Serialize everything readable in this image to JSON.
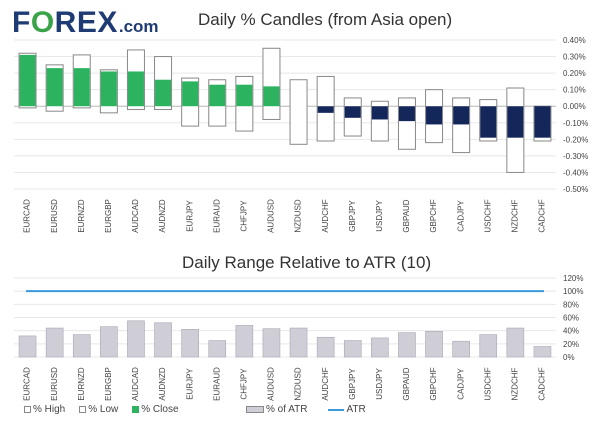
{
  "logo": {
    "prefix": "F",
    "o": "O",
    "suffix": "REX",
    "domain": ".com"
  },
  "colors": {
    "close_up": "#2db360",
    "close_down": "#14275a",
    "border": "#888888",
    "atr_bar": "#cfcdd6",
    "atr_line": "#3a9ad9",
    "grid": "#e8e8e8",
    "brand_blue": "#1f3b73",
    "brand_green": "#3aa34a"
  },
  "chart_data": [
    {
      "type": "candlestick",
      "title": "Daily % Candles (from Asia open)",
      "categories": [
        "EURCAD",
        "EURUSD",
        "EURNZD",
        "EURGBP",
        "AUDCAD",
        "AUDNZD",
        "EURJPY",
        "EURAUD",
        "CHFJPY",
        "AUDUSD",
        "NZDUSD",
        "AUDCHF",
        "GBPJPY",
        "USDJPY",
        "GBPAUD",
        "GBPCHF",
        "CADJPY",
        "USDCHF",
        "NZDCHF",
        "CADCHF"
      ],
      "high": [
        0.32,
        0.25,
        0.31,
        0.22,
        0.34,
        0.3,
        0.17,
        0.16,
        0.18,
        0.35,
        0.16,
        0.18,
        0.05,
        0.03,
        0.05,
        0.1,
        0.05,
        0.04,
        0.11,
        0.0
      ],
      "low": [
        -0.01,
        -0.03,
        -0.01,
        -0.04,
        -0.02,
        -0.02,
        -0.12,
        -0.12,
        -0.15,
        -0.08,
        -0.23,
        -0.21,
        -0.18,
        -0.21,
        -0.26,
        -0.22,
        -0.28,
        -0.21,
        -0.4,
        -0.21
      ],
      "close": [
        0.31,
        0.23,
        0.23,
        0.21,
        0.21,
        0.16,
        0.15,
        0.13,
        0.13,
        0.12,
        0.0,
        -0.04,
        -0.07,
        -0.08,
        -0.09,
        -0.11,
        -0.11,
        -0.19,
        -0.19,
        -0.19
      ],
      "ylim": [
        -0.5,
        0.4
      ],
      "yticks": [
        "0.40%",
        "0.30%",
        "0.20%",
        "0.10%",
        "0.00%",
        "-0.10%",
        "-0.20%",
        "-0.30%",
        "-0.40%",
        "-0.50%"
      ],
      "legend": [
        "% High",
        "% Low",
        "% Close"
      ],
      "legend_position": "bottom-left"
    },
    {
      "type": "bar",
      "title": "Daily Range Relative to ATR (10)",
      "categories": [
        "EURCAD",
        "EURUSD",
        "EURNZD",
        "EURGBP",
        "AUDCAD",
        "AUDNZD",
        "EURJPY",
        "EURAUD",
        "CHFJPY",
        "AUDUSD",
        "NZDUSD",
        "AUDCHF",
        "GBPJPY",
        "USDJPY",
        "GBPAUD",
        "GBPCHF",
        "CADJPY",
        "USDCHF",
        "NZDCHF",
        "CADCHF"
      ],
      "values": [
        32,
        44,
        34,
        46,
        55,
        52,
        42,
        25,
        48,
        43,
        44,
        30,
        25,
        29,
        37,
        39,
        24,
        34,
        44,
        16
      ],
      "atr": 100,
      "ylim": [
        0,
        120
      ],
      "yticks": [
        "120%",
        "100%",
        "80%",
        "60%",
        "40%",
        "20%",
        "0%"
      ],
      "legend": [
        "% of ATR",
        "ATR"
      ],
      "legend_position": "bottom-center"
    }
  ]
}
